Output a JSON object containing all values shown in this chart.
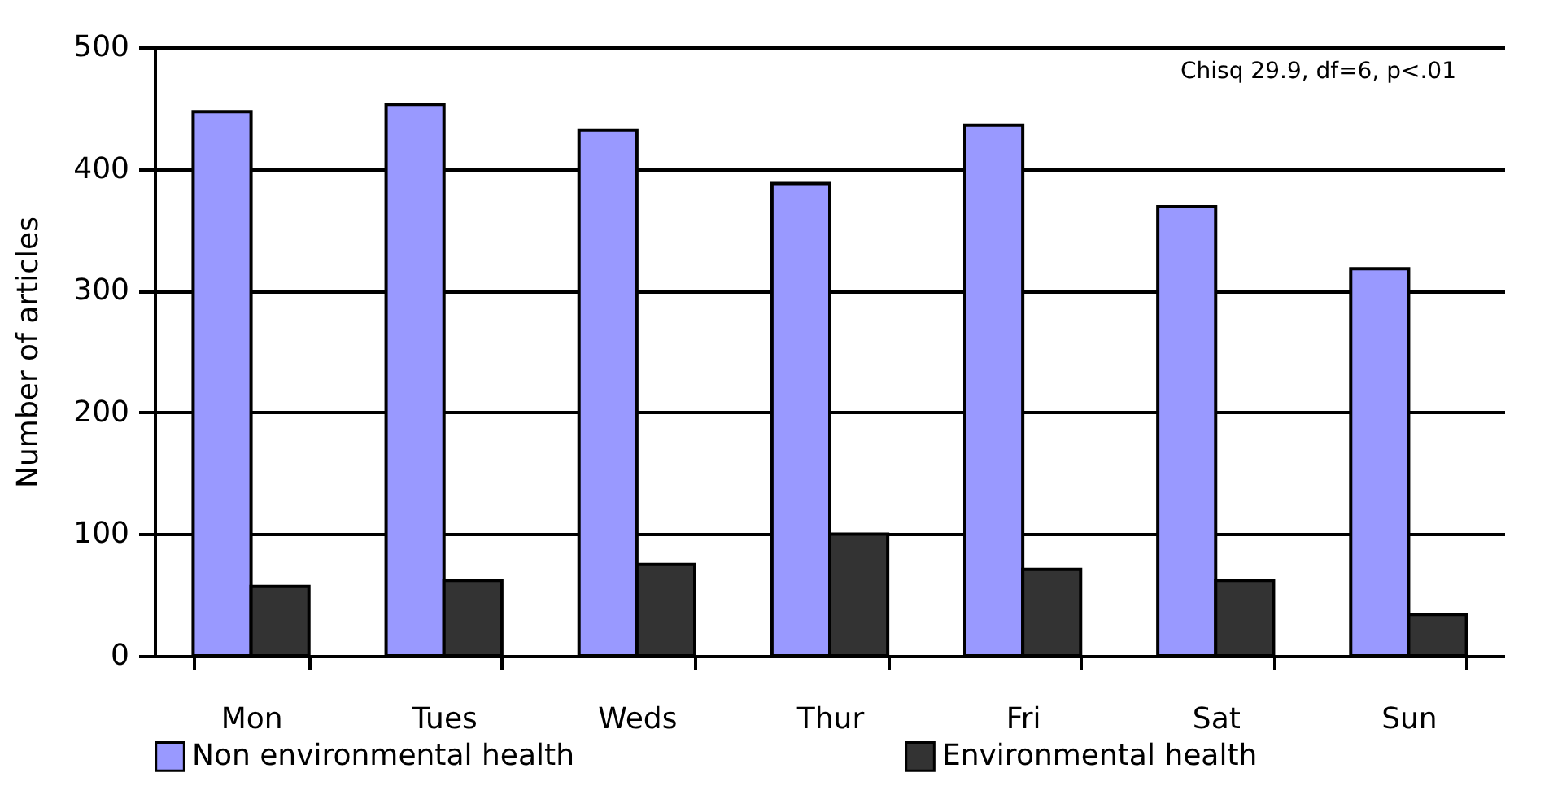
{
  "chart_data": {
    "type": "bar",
    "ylabel": "Number of articles",
    "categories": [
      "Mon",
      "Tues",
      "Weds",
      "Thur",
      "Fri",
      "Sat",
      "Sun"
    ],
    "series": [
      {
        "name": "Non environmental health",
        "color": "#9999ff",
        "values": [
          447,
          453,
          432,
          388,
          436,
          369,
          318
        ]
      },
      {
        "name": "Environmental health",
        "color": "#333333",
        "values": [
          57,
          62,
          75,
          100,
          71,
          62,
          34
        ]
      }
    ],
    "ylim": [
      0,
      500
    ],
    "yticks": [
      0,
      100,
      200,
      300,
      400,
      500
    ],
    "grid": "y",
    "legend": "bottom",
    "annotations": [
      "Chisq 29.9, df=6, p<.01"
    ]
  }
}
